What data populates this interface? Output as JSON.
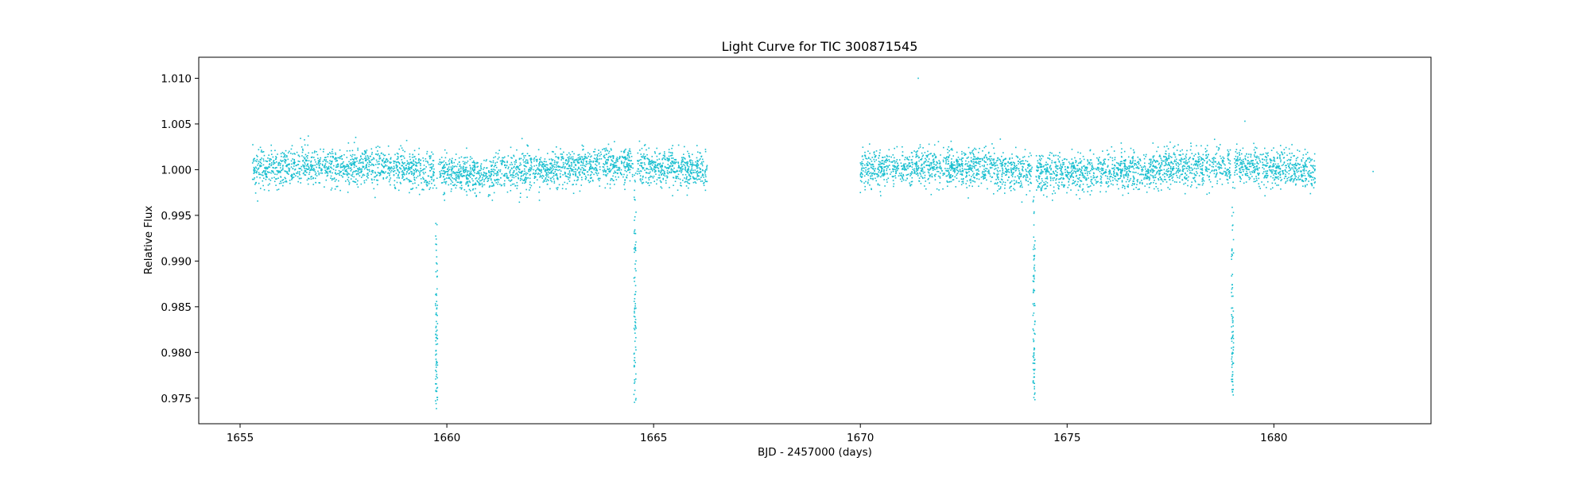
{
  "chart_data": {
    "type": "scatter",
    "title": "Light Curve for TIC 300871545",
    "xlabel": "BJD - 2457000 (days)",
    "ylabel": "Relative Flux",
    "xlim": [
      1654.0,
      1683.8
    ],
    "ylim": [
      0.9722,
      1.0123
    ],
    "xticks": [
      1655,
      1660,
      1665,
      1670,
      1675,
      1680
    ],
    "xtick_labels": [
      "1655",
      "1660",
      "1665",
      "1670",
      "1675",
      "1680"
    ],
    "yticks": [
      0.975,
      0.98,
      0.985,
      0.99,
      0.995,
      1.0,
      1.005,
      1.01
    ],
    "ytick_labels": [
      "0.975",
      "0.980",
      "0.985",
      "0.990",
      "0.995",
      "1.000",
      "1.005",
      "1.010"
    ],
    "grid": false,
    "marker_color": "#17becf",
    "series": [
      {
        "segments": [
          {
            "x_start": 1655.3,
            "x_end": 1666.3,
            "baseline": 1.0,
            "scatter": 0.001
          },
          {
            "x_start": 1670.0,
            "x_end": 1681.0,
            "baseline": 1.0,
            "scatter": 0.001
          }
        ],
        "transits": [
          {
            "x_center": 1659.75,
            "min_flux": 0.9745
          },
          {
            "x_center": 1664.55,
            "min_flux": 0.9748
          },
          {
            "x_center": 1674.2,
            "min_flux": 0.9752
          },
          {
            "x_center": 1679.0,
            "min_flux": 0.9752
          }
        ],
        "outliers": [
          {
            "x": 1671.4,
            "y": 1.01
          },
          {
            "x": 1682.4,
            "y": 0.9998
          },
          {
            "x": 1679.3,
            "y": 1.0053
          }
        ]
      }
    ]
  }
}
